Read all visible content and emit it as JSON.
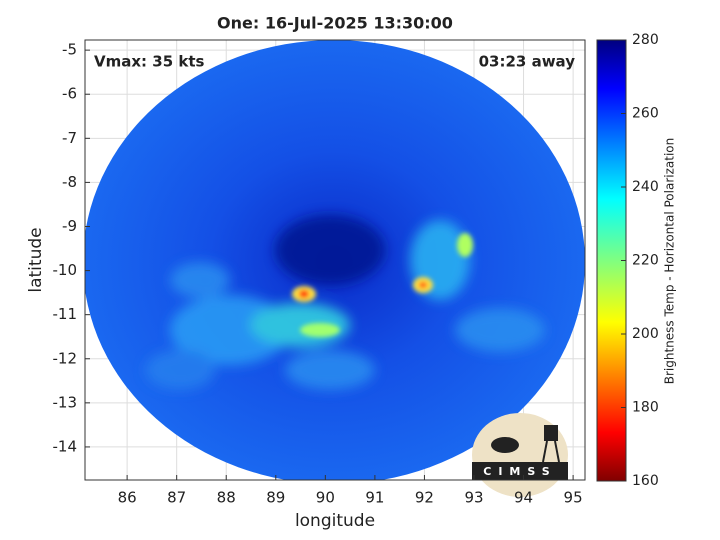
{
  "chart_data": {
    "type": "image",
    "title": "One: 16-Jul-2025 13:30:00",
    "annotations": [
      "Vmax: 35 kts",
      "03:23 away"
    ],
    "x_label": "longitude",
    "y_label": "latitude",
    "xlim": [
      85.15,
      95.24
    ],
    "ylim": [
      -14.75,
      -4.77
    ],
    "xticks": [
      86,
      87,
      88,
      89,
      90,
      91,
      92,
      93,
      94,
      95
    ],
    "yticks": [
      -5,
      -6,
      -7,
      -8,
      -9,
      -10,
      -11,
      -12,
      -13,
      -14
    ],
    "grid": true,
    "colorbar": {
      "label": "Brightness Temp - Horizontal Polarization",
      "lim": [
        160,
        280
      ],
      "ticks": [
        160,
        180,
        200,
        220,
        240,
        260,
        280
      ]
    },
    "logo_text": "CIMSS"
  }
}
